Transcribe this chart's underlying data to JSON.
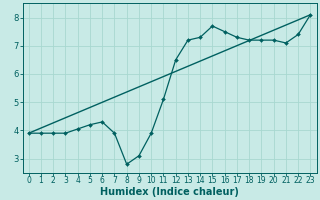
{
  "title": "",
  "xlabel": "Humidex (Indice chaleur)",
  "ylabel": "",
  "background_color": "#c8eae6",
  "grid_color": "#a8d8d0",
  "line_color": "#006060",
  "xlim": [
    -0.5,
    23.5
  ],
  "ylim": [
    2.5,
    8.5
  ],
  "xticks": [
    0,
    1,
    2,
    3,
    4,
    5,
    6,
    7,
    8,
    9,
    10,
    11,
    12,
    13,
    14,
    15,
    16,
    17,
    18,
    19,
    20,
    21,
    22,
    23
  ],
  "yticks": [
    3,
    4,
    5,
    6,
    7,
    8
  ],
  "line1_x": [
    0,
    1,
    2,
    3,
    4,
    5,
    6,
    7,
    8,
    9,
    10,
    11,
    12,
    13,
    14,
    15,
    16,
    17,
    18,
    19,
    20,
    21,
    22,
    23
  ],
  "line1_y": [
    3.9,
    3.9,
    3.9,
    3.9,
    4.05,
    4.2,
    4.3,
    3.9,
    2.8,
    3.1,
    3.9,
    5.1,
    6.5,
    7.2,
    7.3,
    7.7,
    7.5,
    7.3,
    7.2,
    7.2,
    7.2,
    7.1,
    7.4,
    8.1
  ],
  "line2_x": [
    0,
    23
  ],
  "line2_y": [
    3.9,
    8.1
  ],
  "xlabel_fontsize": 7,
  "tick_fontsize": 5.5
}
